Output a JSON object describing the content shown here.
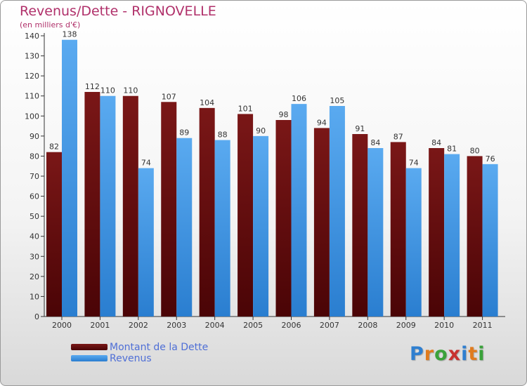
{
  "chart_data": {
    "type": "bar",
    "title": "Revenus/Dette - RIGNOVELLE",
    "subtitle": "(en milliers d'€)",
    "categories": [
      "2000",
      "2001",
      "2002",
      "2003",
      "2004",
      "2005",
      "2006",
      "2007",
      "2008",
      "2009",
      "2010",
      "2011"
    ],
    "series": [
      {
        "name": "Montant de la Dette",
        "color": "#6b0f10",
        "values": [
          82,
          112,
          110,
          107,
          104,
          101,
          98,
          94,
          91,
          87,
          84,
          80
        ]
      },
      {
        "name": "Revenus",
        "color": "#3a95e0",
        "values": [
          138,
          110,
          74,
          89,
          88,
          90,
          106,
          105,
          84,
          74,
          81,
          76
        ]
      }
    ],
    "ylim": [
      0,
      140
    ],
    "yticks": [
      0,
      10,
      20,
      30,
      40,
      50,
      60,
      70,
      80,
      90,
      100,
      110,
      120,
      130,
      140
    ],
    "grid": false,
    "legend_position": "bottom-left"
  },
  "logo": {
    "letters": [
      "P",
      "r",
      "o",
      "x",
      "i",
      "t",
      "i"
    ],
    "colors": [
      "#2f7fd0",
      "#e07b1e",
      "#3aa23a",
      "#c8322f",
      "#2f7fd0",
      "#e07b1e",
      "#3aa23a"
    ]
  }
}
